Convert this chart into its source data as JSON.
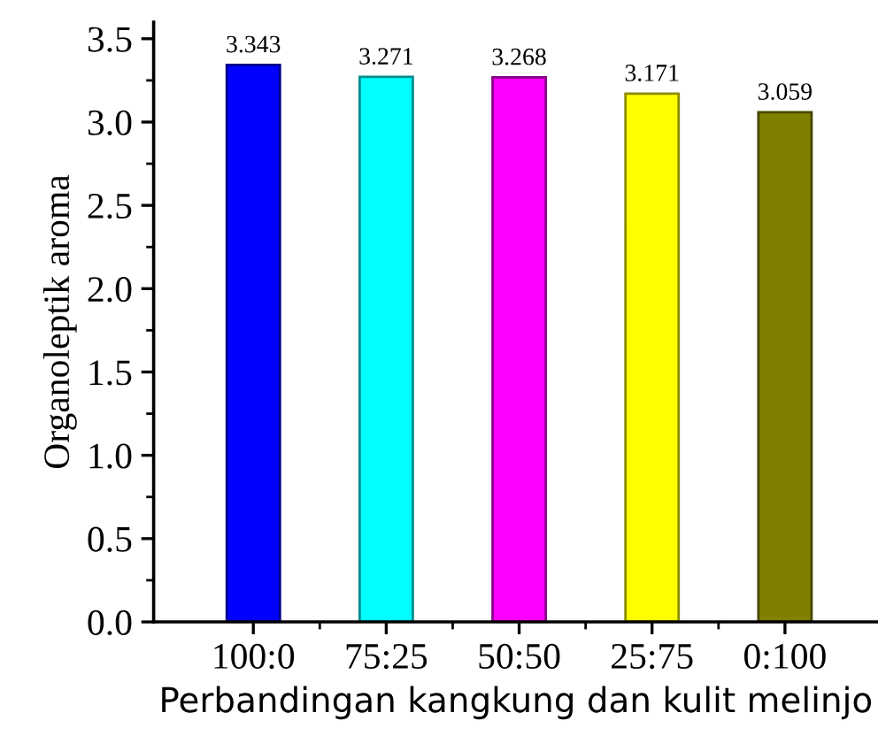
{
  "chart_data": {
    "type": "bar",
    "xlabel": "Perbandingan kangkung dan kulit melinjo",
    "ylabel": "Organoleptik aroma",
    "categories": [
      "100:0",
      "75:25",
      "50:50",
      "25:75",
      "0:100"
    ],
    "values": [
      3.343,
      3.271,
      3.268,
      3.171,
      3.059
    ],
    "colors": [
      "#0000ff",
      "#00ffff",
      "#ff00ff",
      "#ffff00",
      "#808000"
    ],
    "ylim": [
      0,
      3.6
    ],
    "yticks": [
      {
        "value": 0,
        "label": "0.0"
      },
      0.5,
      {
        "value": 1,
        "label": "1.0"
      },
      1.5,
      {
        "value": 2,
        "label": "2.0"
      },
      2.5,
      {
        "value": 3,
        "label": "3.0"
      },
      3.5
    ],
    "data_labels": true,
    "grid": false
  }
}
